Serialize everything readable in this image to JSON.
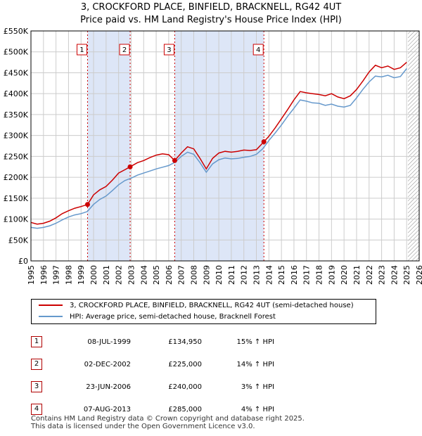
{
  "title_line1": "3, CROCKFORD PLACE, BINFIELD, BRACKNELL, RG42 4UT",
  "title_line2": "Price paid vs. HM Land Registry's House Price Index (HPI)",
  "colors": {
    "property": "#cc0000",
    "hpi": "#6699cc",
    "shade": "#dde6f7",
    "grid": "#cccccc",
    "hatch": "#888888"
  },
  "chart_data": {
    "type": "line",
    "title": "3, CROCKFORD PLACE, BINFIELD, BRACKNELL, RG42 4UT",
    "subtitle": "Price paid vs. HM Land Registry's House Price Index (HPI)",
    "xlabel": "",
    "ylabel": "",
    "xlim": [
      1995,
      2026
    ],
    "ylim": [
      0,
      550000
    ],
    "y_ticks": [
      0,
      50000,
      100000,
      150000,
      200000,
      250000,
      300000,
      350000,
      400000,
      450000,
      500000,
      550000
    ],
    "y_tick_labels": [
      "£0",
      "£50K",
      "£100K",
      "£150K",
      "£200K",
      "£250K",
      "£300K",
      "£350K",
      "£400K",
      "£450K",
      "£500K",
      "£550K"
    ],
    "x_ticks": [
      1995,
      1996,
      1997,
      1998,
      1999,
      2000,
      2001,
      2002,
      2003,
      2004,
      2005,
      2006,
      2007,
      2008,
      2009,
      2010,
      2011,
      2012,
      2013,
      2014,
      2015,
      2016,
      2017,
      2018,
      2019,
      2020,
      2021,
      2022,
      2023,
      2024,
      2025,
      2026
    ],
    "x_tick_labels": [
      "1995",
      "1996",
      "1997",
      "1998",
      "1999",
      "2000",
      "2001",
      "2002",
      "2003",
      "2004",
      "2005",
      "2006",
      "2007",
      "2008",
      "2009",
      "2010",
      "2011",
      "2012",
      "2013",
      "2014",
      "2015",
      "2016",
      "2017",
      "2018",
      "2019",
      "2020",
      "2021",
      "2022",
      "2023",
      "2024",
      "2025",
      "2026"
    ],
    "grid": true,
    "forecast_from": 2025.1,
    "shaded_periods": [
      [
        1999.52,
        2002.92
      ],
      [
        2006.48,
        2013.6
      ]
    ],
    "series": [
      {
        "name": "3, CROCKFORD PLACE, BINFIELD, BRACKNELL, RG42 4UT (semi-detached house)",
        "x": [
          1995.0,
          1995.5,
          1996.0,
          1996.5,
          1997.0,
          1997.5,
          1998.0,
          1998.5,
          1999.0,
          1999.52,
          2000.0,
          2000.5,
          2001.0,
          2001.5,
          2002.0,
          2002.5,
          2002.92,
          2003.5,
          2004.0,
          2004.5,
          2005.0,
          2005.5,
          2006.0,
          2006.48,
          2007.0,
          2007.5,
          2008.0,
          2008.5,
          2009.0,
          2009.5,
          2010.0,
          2010.5,
          2011.0,
          2011.5,
          2012.0,
          2012.5,
          2013.0,
          2013.6,
          2014.0,
          2014.5,
          2015.0,
          2015.5,
          2016.0,
          2016.5,
          2017.0,
          2017.5,
          2018.0,
          2018.5,
          2019.0,
          2019.5,
          2020.0,
          2020.5,
          2021.0,
          2021.5,
          2022.0,
          2022.5,
          2023.0,
          2023.5,
          2024.0,
          2024.5,
          2025.0
        ],
        "values": [
          92000,
          88000,
          90000,
          95000,
          103000,
          113000,
          120000,
          126000,
          130000,
          134950,
          158000,
          170000,
          178000,
          193000,
          210000,
          218000,
          225000,
          235000,
          240000,
          247000,
          253000,
          256000,
          254000,
          240000,
          258000,
          273000,
          268000,
          245000,
          220000,
          245000,
          258000,
          262000,
          260000,
          262000,
          265000,
          264000,
          266000,
          285000,
          298000,
          318000,
          340000,
          362000,
          385000,
          405000,
          402000,
          400000,
          398000,
          395000,
          400000,
          392000,
          388000,
          395000,
          410000,
          430000,
          452000,
          468000,
          462000,
          466000,
          458000,
          462000,
          475000
        ]
      },
      {
        "name": "HPI: Average price, semi-detached house, Bracknell Forest",
        "x": [
          1995.0,
          1995.5,
          1996.0,
          1996.5,
          1997.0,
          1997.5,
          1998.0,
          1998.5,
          1999.0,
          1999.5,
          2000.0,
          2000.5,
          2001.0,
          2001.5,
          2002.0,
          2002.5,
          2003.0,
          2003.5,
          2004.0,
          2004.5,
          2005.0,
          2005.5,
          2006.0,
          2006.5,
          2007.0,
          2007.5,
          2008.0,
          2008.5,
          2009.0,
          2009.5,
          2010.0,
          2010.5,
          2011.0,
          2011.5,
          2012.0,
          2012.5,
          2013.0,
          2013.5,
          2014.0,
          2014.5,
          2015.0,
          2015.5,
          2016.0,
          2016.5,
          2017.0,
          2017.5,
          2018.0,
          2018.5,
          2019.0,
          2019.5,
          2020.0,
          2020.5,
          2021.0,
          2021.5,
          2022.0,
          2022.5,
          2023.0,
          2023.5,
          2024.0,
          2024.5,
          2025.0
        ],
        "values": [
          80000,
          78000,
          80000,
          84000,
          90000,
          98000,
          105000,
          110000,
          113000,
          118000,
          135000,
          147000,
          155000,
          168000,
          182000,
          192000,
          198000,
          205000,
          210000,
          215000,
          220000,
          224000,
          228000,
          236000,
          250000,
          260000,
          255000,
          235000,
          212000,
          232000,
          242000,
          246000,
          244000,
          245000,
          248000,
          250000,
          255000,
          268000,
          288000,
          306000,
          325000,
          346000,
          365000,
          385000,
          382000,
          378000,
          377000,
          372000,
          375000,
          370000,
          368000,
          372000,
          390000,
          410000,
          428000,
          442000,
          440000,
          444000,
          438000,
          441000,
          460000
        ]
      }
    ],
    "sales": [
      {
        "label": "1",
        "x": 1999.52,
        "value": 134950
      },
      {
        "label": "2",
        "x": 2002.92,
        "value": 225000
      },
      {
        "label": "3",
        "x": 2006.48,
        "value": 240000
      },
      {
        "label": "4",
        "x": 2013.6,
        "value": 285000
      }
    ]
  },
  "legend": {
    "property_label": "3, CROCKFORD PLACE, BINFIELD, BRACKNELL, RG42 4UT (semi-detached house)",
    "hpi_label": "HPI: Average price, semi-detached house, Bracknell Forest"
  },
  "sales_table": [
    {
      "num": "1",
      "date": "08-JUL-1999",
      "price": "£134,950",
      "hpi": "15% ↑ HPI"
    },
    {
      "num": "2",
      "date": "02-DEC-2002",
      "price": "£225,000",
      "hpi": "14% ↑ HPI"
    },
    {
      "num": "3",
      "date": "23-JUN-2006",
      "price": "£240,000",
      "hpi": "3% ↑ HPI"
    },
    {
      "num": "4",
      "date": "07-AUG-2013",
      "price": "£285,000",
      "hpi": "4% ↑ HPI"
    }
  ],
  "footer_line1": "Contains HM Land Registry data © Crown copyright and database right 2025.",
  "footer_line2": "This data is licensed under the Open Government Licence v3.0."
}
